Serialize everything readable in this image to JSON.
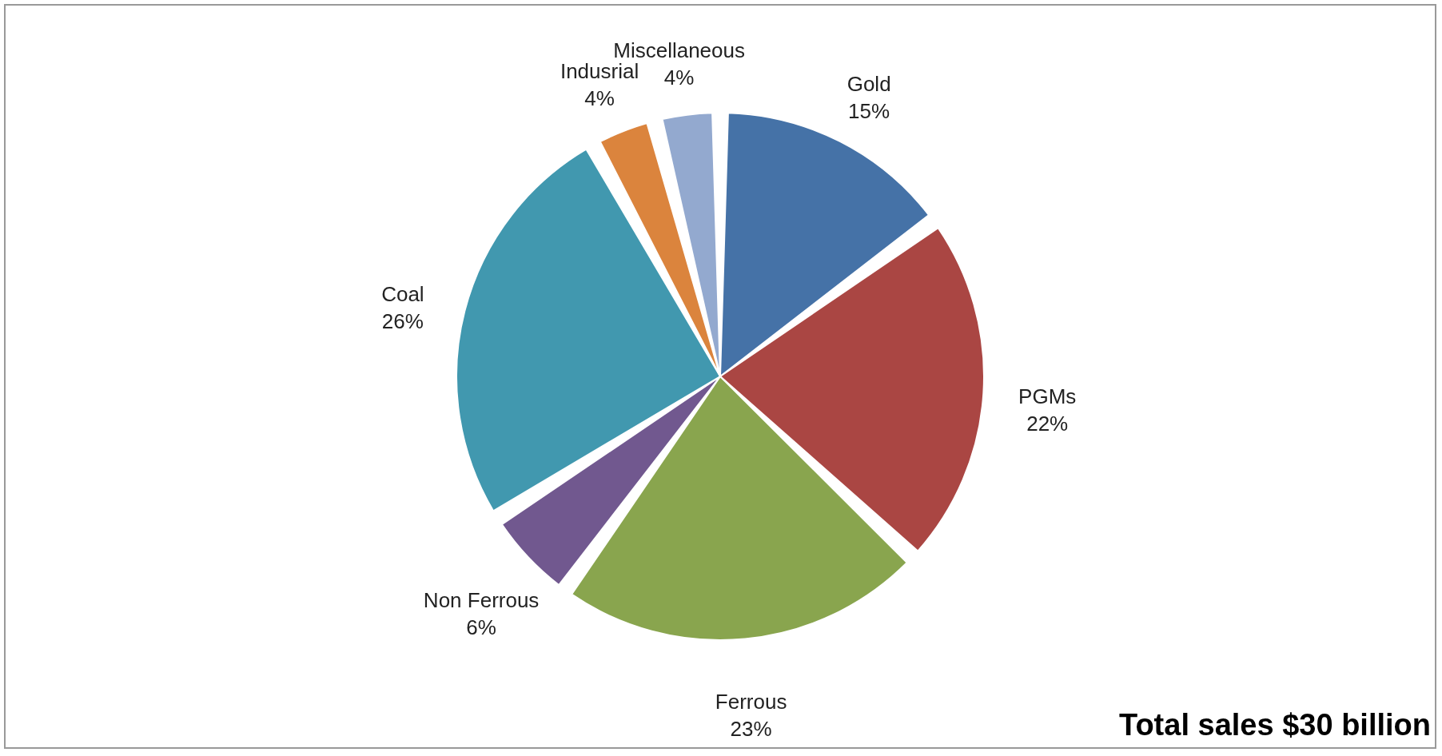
{
  "chart_data": {
    "type": "pie",
    "categories": [
      "Gold",
      "PGMs",
      "Ferrous",
      "Non Ferrous",
      "Coal",
      "Indusrial",
      "Miscellaneous"
    ],
    "values": [
      15,
      22,
      23,
      6,
      26,
      4,
      4
    ],
    "value_labels": [
      "15%",
      "22%",
      "23%",
      "6%",
      "26%",
      "4%",
      "4%"
    ],
    "colors": [
      "#4572a7",
      "#aa4643",
      "#89a54e",
      "#71588f",
      "#4198af",
      "#db843d",
      "#93a9cf"
    ],
    "legend": false,
    "annotations": [
      "Total sales $30 billion"
    ]
  }
}
